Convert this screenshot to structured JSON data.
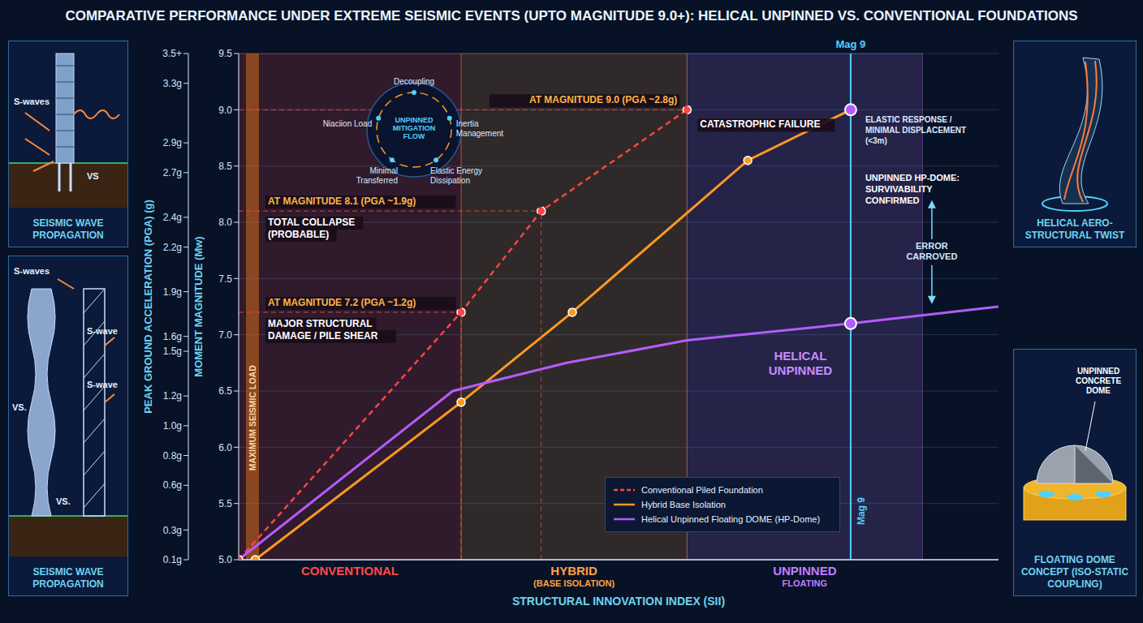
{
  "chart_data": {
    "type": "line",
    "title": "COMPARATIVE PERFORMANCE UNDER EXTREME SEISMIC EVENTS (UPTO MAGNITUDE 9.0+): HELICAL UNPINNED VS. CONVENTIONAL FOUNDATIONS",
    "x_label": "STRUCTURAL INNOVATION INDEX (SII)",
    "y_label": "MOMENT MAGNITUDE (Mw)",
    "y2_label": "PEAK GROUND ACCELERATION (PGA) (g)",
    "xlim": [
      0,
      11
    ],
    "ylim": [
      5,
      9.5
    ],
    "yticks": [
      {
        "value": 5,
        "label": "5.0"
      },
      5.5,
      {
        "value": 6,
        "label": "6.0"
      },
      6.5,
      {
        "value": 7,
        "label": "7.0"
      },
      7.5,
      {
        "value": 8,
        "label": "8.0"
      },
      8.5,
      {
        "value": 9,
        "label": "9.0"
      },
      9.5
    ],
    "y2lim": [
      0.1,
      3.5
    ],
    "y2ticks": [
      {
        "value": 0.1,
        "label": "0.1g"
      },
      {
        "value": 0.3,
        "label": "0.3g"
      },
      {
        "value": 0.6,
        "label": "0.6g"
      },
      {
        "value": 0.8,
        "label": "0.8g"
      },
      {
        "value": 1.0,
        "label": "1.0g"
      },
      {
        "value": 1.2,
        "label": "1.2g"
      },
      {
        "value": 1.5,
        "label": "1.5g"
      },
      {
        "value": 1.6,
        "label": "1.6g"
      },
      {
        "value": 1.9,
        "label": "1.9g"
      },
      {
        "value": 2.2,
        "label": "2.2g"
      },
      {
        "value": 2.4,
        "label": "2.4g"
      },
      {
        "value": 2.7,
        "label": "2.7g"
      },
      {
        "value": 2.9,
        "label": "2.9g"
      },
      {
        "value": 3.3,
        "label": "3.3g"
      },
      {
        "value": 3.5,
        "label": "3.5+"
      }
    ],
    "tick_labels": "y",
    "grid": true,
    "legend": "bottom-right",
    "series": [
      {
        "name": "Conventional Piled Foundation",
        "color": "#ff4545",
        "line_style": "dashed",
        "marker": "circle",
        "x": [
          0,
          3.22,
          4.38,
          6.49
        ],
        "values": [
          5,
          7.2,
          8.1,
          9.0
        ]
      },
      {
        "name": "Hybrid Base Isolation",
        "color": "#ff9a1f",
        "line_style": "solid",
        "marker": "circle",
        "x": [
          0.24,
          3.22,
          4.83,
          7.37,
          8.86
        ],
        "values": [
          5,
          6.4,
          7.2,
          8.55,
          9.0
        ]
      },
      {
        "name": "Helical Unpinned Floating DOME (HP-Dome)",
        "color": "#b45cff",
        "line_style": "solid",
        "marker": "none",
        "x": [
          0,
          3.1,
          4.75,
          6.49,
          8.86,
          11
        ],
        "values": [
          5,
          6.5,
          6.75,
          6.95,
          7.1,
          7.25
        ]
      }
    ],
    "regions": [
      {
        "label": "CONVENTIONAL",
        "x0": 0,
        "x1": 3.22,
        "color": "#ff4a4a"
      },
      {
        "label": "HYBRID",
        "sublabel": "(BASE ISOLATION)",
        "x0": 3.22,
        "x1": 6.49,
        "color": "#ffa040"
      },
      {
        "label": "UNPINNED",
        "sublabel": "FLOATING",
        "x0": 6.49,
        "x1": 9.9,
        "color": "#c07cff"
      }
    ],
    "max_load": {
      "x": 0.2,
      "label": "MAXIMUM SEISMIC LOAD"
    },
    "annotations": [
      {
        "x": 3.22,
        "y": 7.2,
        "title": "AT MAGNITUDE 7.2 (PGA ~1.2g)",
        "text": "MAJOR STRUCTURAL DAMAGE / PILE SHEAR"
      },
      {
        "x": 4.38,
        "y": 8.1,
        "title": "AT MAGNITUDE 8.1 (PGA ~1.9g)",
        "text": "TOTAL COLLAPSE (PROBABLE)"
      },
      {
        "x": 6.49,
        "y": 9.0,
        "title": "AT MAGNITUDE 9.0 (PGA ~2.8g)",
        "text": "CATASTROPHIC FAILURE"
      }
    ],
    "reference_line": {
      "x": 8.86,
      "label": "Mag 9"
    },
    "callouts": [
      {
        "x": 8.86,
        "y": 9.0,
        "texts": [
          "ELASTIC RESPONSE / MINIMAL DISPLACEMENT (<3m)",
          "UNPINNED HP-DOME: SURVIVABILITY CONFIRMED"
        ]
      },
      {
        "x": 8.86,
        "y": 7.1,
        "texts": [
          "ERROR CARROVED",
          "HELICAL UNPINNED"
        ]
      }
    ],
    "flow": {
      "title": "UNPINNED MITIGATION FLOW",
      "nodes": [
        "Decoupling",
        "Inertia Management",
        "Elastic Energy Dissipation",
        "Minimal Transferred",
        "Niaciion Load"
      ]
    }
  },
  "panels": {
    "left": [
      {
        "caption": "SEISMIC WAVE PROPAGATION",
        "labels": [
          "S-waves",
          "VS"
        ]
      },
      {
        "caption": "SEISMIC WAVE PROPAGATION",
        "labels": [
          "S-waves",
          "S-wave",
          "S-wave",
          "VS.",
          "VS."
        ]
      }
    ],
    "right": [
      {
        "caption": "HELICAL AERO-STRUCTURAL TWIST",
        "labels": []
      },
      {
        "caption": "FLOATING DOME CONCEPT (ISO-STATIC COUPLING)",
        "labels": [
          "UNPINNED CONCRETE DOME"
        ]
      }
    ]
  }
}
